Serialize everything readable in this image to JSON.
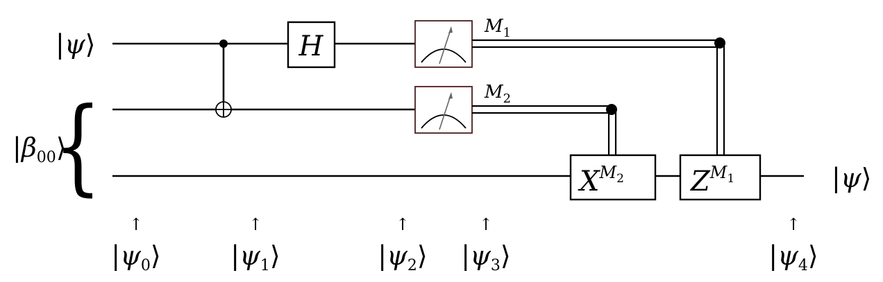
{
  "circuit": {
    "inputs": {
      "psi": {
        "bra": "|",
        "sym": "ψ",
        "ket": "⟩"
      },
      "beta": {
        "bra": "|",
        "sym": "β",
        "sub": "00",
        "ket": "⟩",
        "brace": "{"
      }
    },
    "output": {
      "bra": "|",
      "sym": "ψ",
      "ket": "⟩"
    },
    "gates": {
      "h": "H",
      "x": {
        "base": "X",
        "sup": "M",
        "sup_sub": "2"
      },
      "z": {
        "base": "Z",
        "sup": "M",
        "sup_sub": "1"
      }
    },
    "measurements": {
      "m1": {
        "sym": "M",
        "sub": "1"
      },
      "m2": {
        "sym": "M",
        "sub": "2"
      }
    },
    "stages": {
      "arrow": "↑",
      "items": [
        {
          "sym": "ψ",
          "sub": "0"
        },
        {
          "sym": "ψ",
          "sub": "1"
        },
        {
          "sym": "ψ",
          "sub": "2"
        },
        {
          "sym": "ψ",
          "sub": "3"
        },
        {
          "sym": "ψ",
          "sub": "4"
        }
      ],
      "bra": "|",
      "ket": "⟩"
    }
  },
  "colors": {
    "ink": "#000000",
    "meter_border": "#5a1a1a",
    "background": "#ffffff"
  }
}
